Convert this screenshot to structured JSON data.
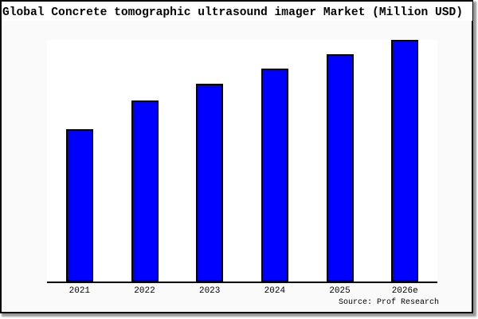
{
  "chart_data": {
    "type": "bar",
    "title": "Global Concrete tomographic ultrasound imager Market (Million USD)",
    "categories": [
      "2021",
      "2022",
      "2023",
      "2024",
      "2025",
      "2026e"
    ],
    "values": [
      63,
      75,
      82,
      88,
      94,
      100
    ],
    "value_scale": "relative, tallest bar (2026e) = 100; y-axis has no tick labels in the image",
    "xlabel": "",
    "ylabel": "",
    "ylim": [
      0,
      100
    ],
    "grid": false,
    "legend": null,
    "source": "Source: Prof Research"
  },
  "colors": {
    "bar_fill": "#0000fe",
    "bar_border": "#000000",
    "figure_bg": "#fafafa",
    "plot_bg": "#ffffff",
    "title_bg": "#ffffff",
    "axis": "#000000",
    "card_border": "#000000",
    "shadow": "#999999"
  }
}
